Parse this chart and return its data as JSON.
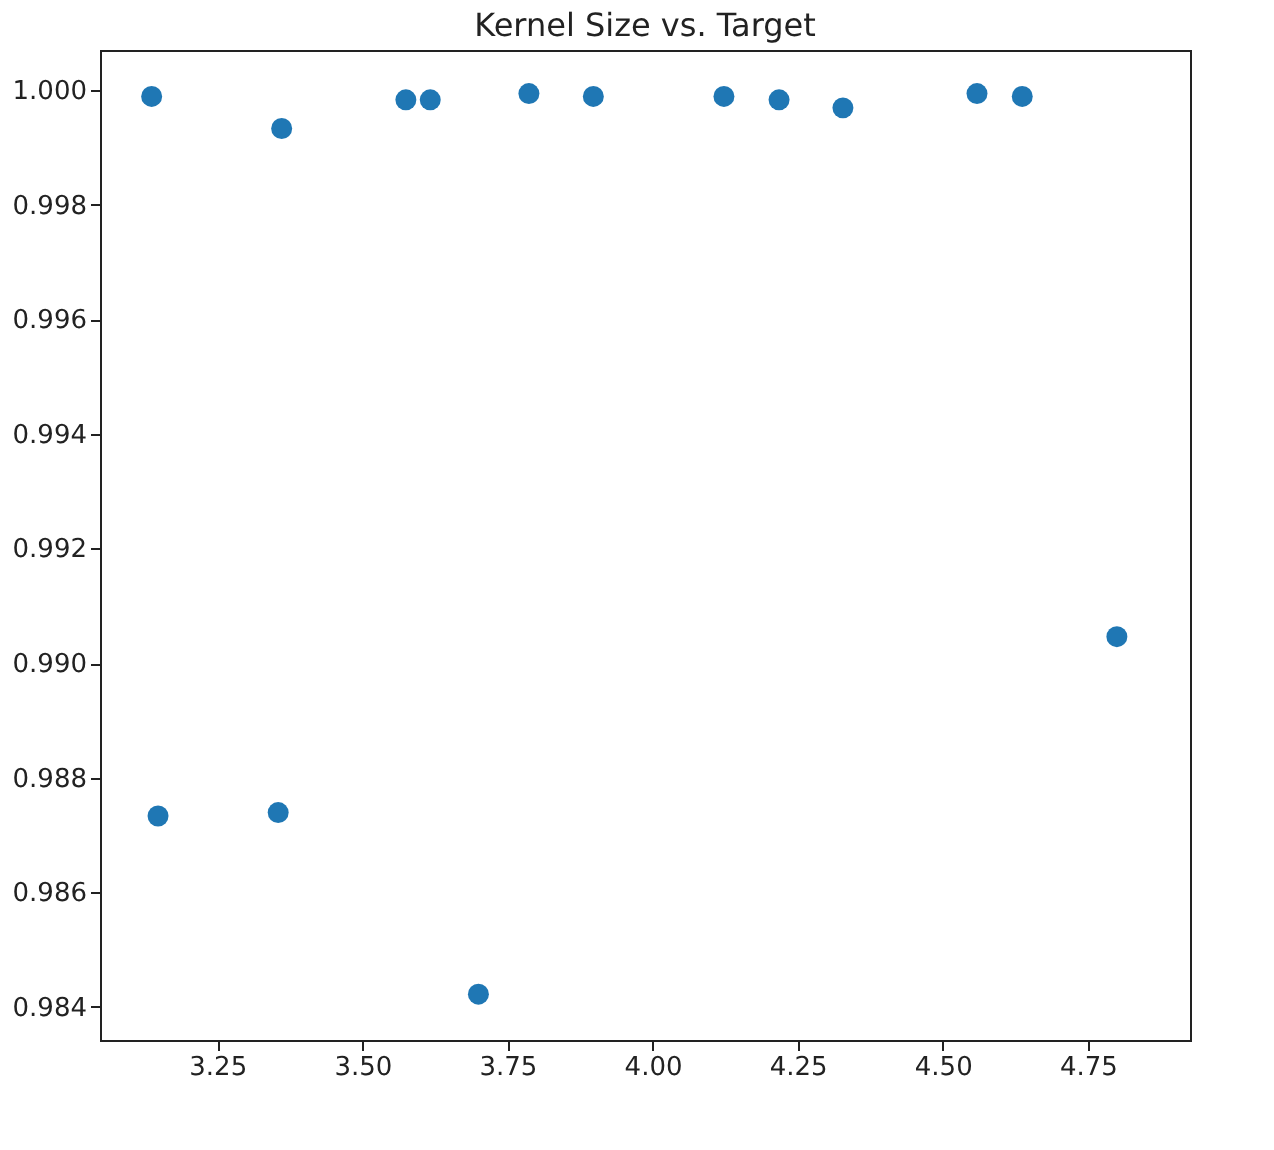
{
  "chart_data": {
    "type": "scatter",
    "title": "Kernel Size vs. Target",
    "x": [
      3.137,
      3.148,
      3.361,
      3.355,
      3.575,
      3.617,
      3.7,
      3.787,
      3.898,
      4.123,
      4.218,
      4.328,
      4.559,
      4.637,
      4.8
    ],
    "series": [
      {
        "color": "#1f77b4",
        "values": [
          0.99989,
          0.98733,
          0.99933,
          0.98739,
          0.99983,
          0.99983,
          0.98422,
          0.99994,
          0.99989,
          0.99989,
          0.99983,
          0.99969,
          0.99994,
          0.99989,
          0.99046
        ]
      }
    ],
    "xlim": [
      3.048,
      4.926
    ],
    "ylim": [
      0.98342,
      1.0007
    ],
    "xticks": [
      {
        "value": 3.25,
        "label": "3.25"
      },
      {
        "value": 3.5,
        "label": "3.50"
      },
      {
        "value": 3.75,
        "label": "3.75"
      },
      {
        "value": 4.0,
        "label": "4.00"
      },
      {
        "value": 4.25,
        "label": "4.25"
      },
      {
        "value": 4.5,
        "label": "4.50"
      },
      {
        "value": 4.75,
        "label": "4.75"
      }
    ],
    "yticks": [
      {
        "value": 0.984,
        "label": "0.984"
      },
      {
        "value": 0.986,
        "label": "0.986"
      },
      {
        "value": 0.988,
        "label": "0.988"
      },
      {
        "value": 0.99,
        "label": "0.990"
      },
      {
        "value": 0.992,
        "label": "0.992"
      },
      {
        "value": 0.994,
        "label": "0.994"
      },
      {
        "value": 0.996,
        "label": "0.996"
      },
      {
        "value": 0.998,
        "label": "0.998"
      },
      {
        "value": 1.0,
        "label": "1.000"
      }
    ],
    "grid": false
  }
}
